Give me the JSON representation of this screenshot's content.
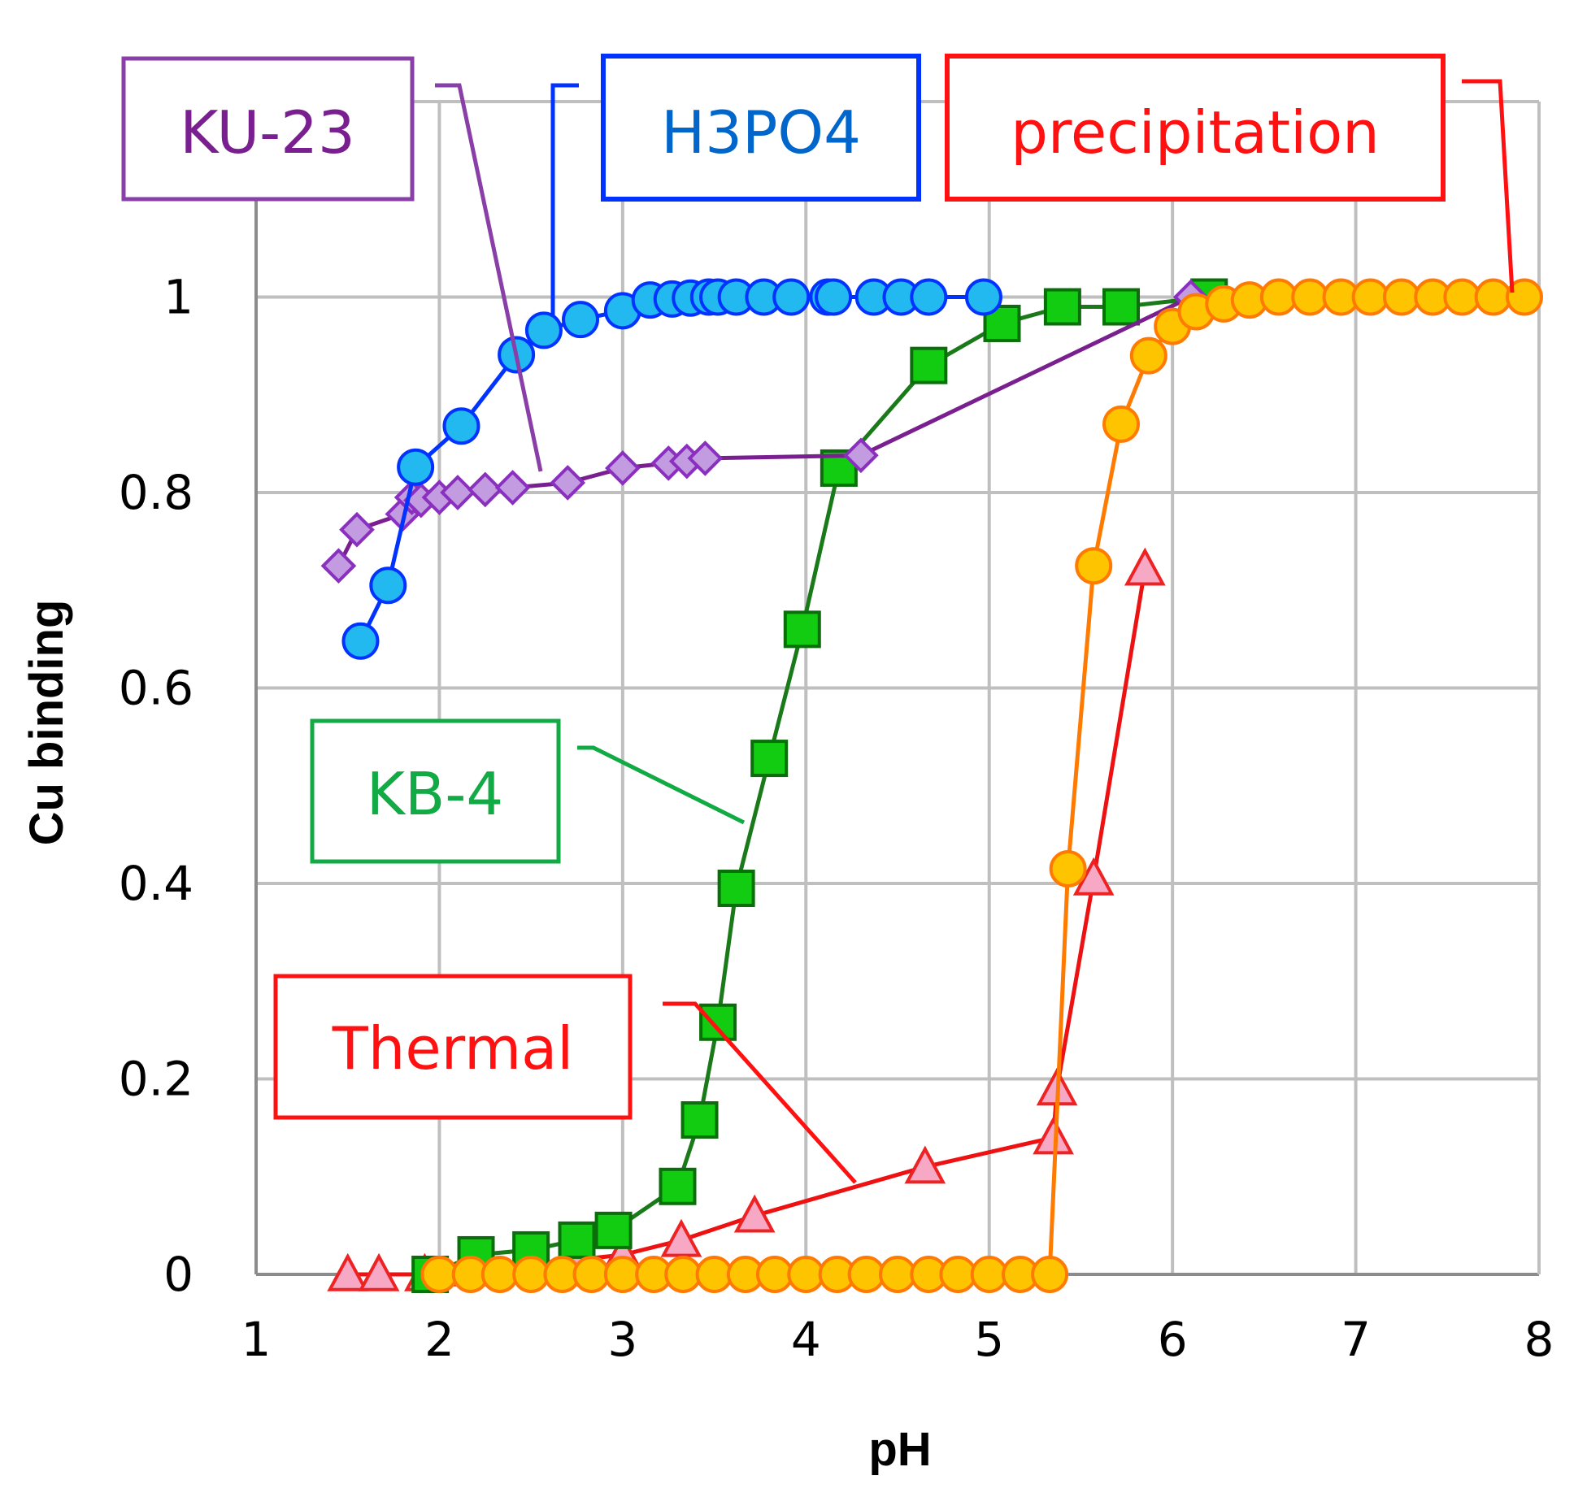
{
  "chart_data": {
    "type": "line",
    "title": "",
    "xlabel": "pH",
    "ylabel": "Cu binding",
    "xlim": [
      1,
      8
    ],
    "ylim": [
      0,
      1.2
    ],
    "grid": true,
    "x_ticks": [
      "1",
      "2",
      "3",
      "4",
      "5",
      "6",
      "7",
      "8"
    ],
    "y_ticks": [
      "0",
      "0.2",
      "0.4",
      "0.6",
      "0.8",
      "1",
      "1"
    ],
    "series": [
      {
        "name": "H3PO4",
        "marker": "circle",
        "line_color": "#0033ff",
        "marker_fill": "#22b8f0",
        "marker_stroke": "#0033ff",
        "x": [
          1.57,
          1.72,
          1.87,
          2.12,
          2.42,
          2.57,
          2.77,
          3.0,
          3.15,
          3.27,
          3.37,
          3.47,
          3.52,
          3.62,
          3.77,
          3.92,
          4.12,
          4.15,
          4.37,
          4.52,
          4.67,
          4.97
        ],
        "y": [
          0.648,
          0.705,
          0.826,
          0.868,
          0.941,
          0.966,
          0.977,
          0.986,
          0.997,
          0.998,
          0.999,
          1.0,
          1.0,
          1.0,
          1.0,
          1.0,
          1.0,
          1.0,
          1.0,
          1.0,
          1.0,
          1.0
        ]
      },
      {
        "name": "KU-23",
        "marker": "diamond",
        "line_color": "#7a1f8f",
        "marker_fill": "#c39be0",
        "marker_stroke": "#8a2fbf",
        "x": [
          1.45,
          1.55,
          1.8,
          1.85,
          1.9,
          2.0,
          2.1,
          2.25,
          2.4,
          2.7,
          3.0,
          3.25,
          3.35,
          3.45,
          4.3,
          6.1
        ],
        "y": [
          0.725,
          0.762,
          0.778,
          0.795,
          0.792,
          0.795,
          0.8,
          0.803,
          0.805,
          0.81,
          0.825,
          0.83,
          0.832,
          0.835,
          0.838,
          1.0
        ]
      },
      {
        "name": "KB-4",
        "marker": "square",
        "line_color": "#1a7a1a",
        "marker_fill": "#11cc11",
        "marker_stroke": "#0a6e0a",
        "x": [
          1.95,
          2.2,
          2.5,
          2.75,
          2.95,
          3.3,
          3.42,
          3.52,
          3.62,
          3.8,
          3.98,
          4.18,
          4.67,
          5.07,
          5.4,
          5.72,
          6.2
        ],
        "y": [
          0.0,
          0.02,
          0.025,
          0.035,
          0.045,
          0.09,
          0.158,
          0.258,
          0.395,
          0.528,
          0.66,
          0.825,
          0.93,
          0.973,
          0.99,
          0.99,
          1.0
        ]
      },
      {
        "name": "Thermal",
        "marker": "triangle",
        "line_color": "#ee1111",
        "marker_fill": "#f7a8c4",
        "marker_stroke": "#ee2222",
        "x": [
          1.5,
          1.67,
          1.92,
          2.15,
          2.47,
          2.75,
          3.0,
          3.32,
          3.72,
          4.65,
          5.35,
          5.37,
          5.57,
          5.85
        ],
        "y": [
          0.0,
          0.0,
          0.0,
          0.005,
          0.01,
          0.015,
          0.02,
          0.035,
          0.06,
          0.11,
          0.14,
          0.19,
          0.405,
          0.722
        ]
      },
      {
        "name": "precipitation",
        "marker": "circle",
        "line_color": "#ff7a00",
        "marker_fill": "#ffc400",
        "marker_stroke": "#ff7a00",
        "x": [
          2.0,
          2.17,
          2.33,
          2.5,
          2.67,
          2.83,
          3.0,
          3.17,
          3.33,
          3.5,
          3.67,
          3.83,
          4.0,
          4.17,
          4.33,
          4.5,
          4.67,
          4.83,
          5.0,
          5.17,
          5.33,
          5.43,
          5.57,
          5.72,
          5.87,
          6.0,
          6.13,
          6.28,
          6.42,
          6.58,
          6.75,
          6.92,
          7.08,
          7.25,
          7.42,
          7.58,
          7.75,
          7.92
        ],
        "y": [
          0.0,
          0.0,
          0.0,
          0.0,
          0.0,
          0.0,
          0.0,
          0.0,
          0.0,
          0.0,
          0.0,
          0.0,
          0.0,
          0.0,
          0.0,
          0.0,
          0.0,
          0.0,
          0.0,
          0.0,
          0.0,
          0.415,
          0.725,
          0.87,
          0.94,
          0.97,
          0.985,
          0.993,
          0.997,
          1.0,
          1.0,
          1.0,
          1.0,
          1.0,
          1.0,
          1.0,
          1.0,
          1.0
        ]
      }
    ],
    "annotations": [
      {
        "text": "KU-23",
        "color": "#7a1f8f"
      },
      {
        "text": "H3PO4",
        "color": "#0033ff"
      },
      {
        "text": "precipitation",
        "color": "#ff1111"
      },
      {
        "text": "KB-4",
        "color": "#11aa44"
      },
      {
        "text": "Thermal",
        "color": "#ff1111"
      }
    ]
  }
}
